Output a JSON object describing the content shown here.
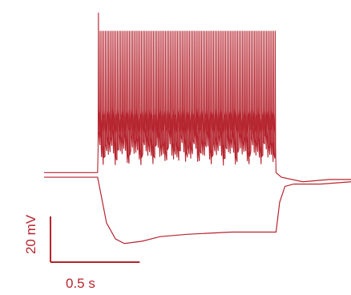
{
  "chart_data": {
    "type": "line",
    "title": "",
    "xlabel": "",
    "ylabel": "",
    "grid": false,
    "legend": "none",
    "color": "#b5242e",
    "x_unit": "s",
    "y_unit": "mV",
    "xlim": [
      -0.3,
      1.42
    ],
    "ylim": [
      -88,
      20
    ],
    "stimulus": {
      "start": 0.0,
      "end": 1.0
    },
    "scale_bar": {
      "time_label": "0.5 s",
      "time_value": 0.5,
      "voltage_label": "20 mV",
      "voltage_value": 20
    },
    "series": [
      {
        "role": "depolarizing step (spiking)",
        "baseline_mV": -52,
        "spike_count": 104,
        "spike_peak_mV": 10,
        "trough_mV": -50,
        "after_step_mV": -55,
        "points": [
          [
            -0.3,
            -52
          ],
          [
            -0.05,
            -52
          ],
          [
            0.0,
            -52
          ],
          [
            1.0,
            -52
          ],
          [
            1.03,
            -54
          ],
          [
            1.15,
            -56
          ],
          [
            1.3,
            -55
          ],
          [
            1.42,
            -55
          ]
        ]
      },
      {
        "role": "hyperpolarizing step",
        "points": [
          [
            -0.3,
            -54
          ],
          [
            -0.05,
            -54
          ],
          [
            0.0,
            -54
          ],
          [
            0.02,
            -62
          ],
          [
            0.05,
            -74
          ],
          [
            0.1,
            -81
          ],
          [
            0.15,
            -83
          ],
          [
            0.25,
            -82
          ],
          [
            0.35,
            -80
          ],
          [
            0.5,
            -79
          ],
          [
            0.75,
            -78
          ],
          [
            1.0,
            -78
          ],
          [
            1.02,
            -65
          ],
          [
            1.05,
            -58
          ],
          [
            1.1,
            -57
          ],
          [
            1.25,
            -57
          ],
          [
            1.42,
            -56
          ]
        ]
      }
    ]
  }
}
